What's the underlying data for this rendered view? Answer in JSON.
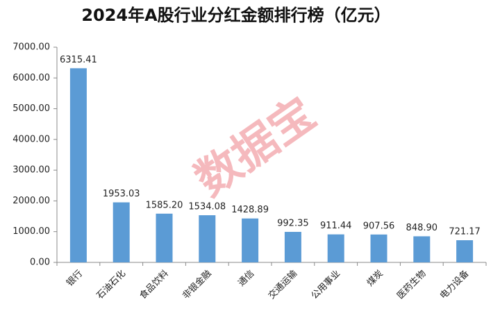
{
  "chart_data": {
    "type": "bar",
    "title": "2024年A股行业分红金额排行榜（亿元）",
    "categories": [
      "银行",
      "石油石化",
      "食品饮料",
      "非银金融",
      "通信",
      "交通运输",
      "公用事业",
      "煤炭",
      "医药生物",
      "电力设备"
    ],
    "values": [
      6315.41,
      1953.03,
      1585.2,
      1534.08,
      1428.89,
      992.35,
      911.44,
      907.56,
      848.9,
      721.17
    ],
    "value_labels": [
      "6315.41",
      "1953.03",
      "1585.20",
      "1534.08",
      "1428.89",
      "992.35",
      "911.44",
      "907.56",
      "848.90",
      "721.17"
    ],
    "color": "#5b9bd5",
    "ylim": [
      0,
      7000
    ],
    "yticks": [
      {
        "value": 0,
        "label": "0.00"
      },
      {
        "value": 1000,
        "label": "1000.00"
      },
      {
        "value": 2000,
        "label": "2000.00"
      },
      {
        "value": 3000,
        "label": "3000.00"
      },
      {
        "value": 4000,
        "label": "4000.00"
      },
      {
        "value": 5000,
        "label": "5000.00"
      },
      {
        "value": 6000,
        "label": "6000.00"
      },
      {
        "value": 7000,
        "label": "7000.00"
      }
    ],
    "grid": false,
    "watermark": "数据宝"
  }
}
